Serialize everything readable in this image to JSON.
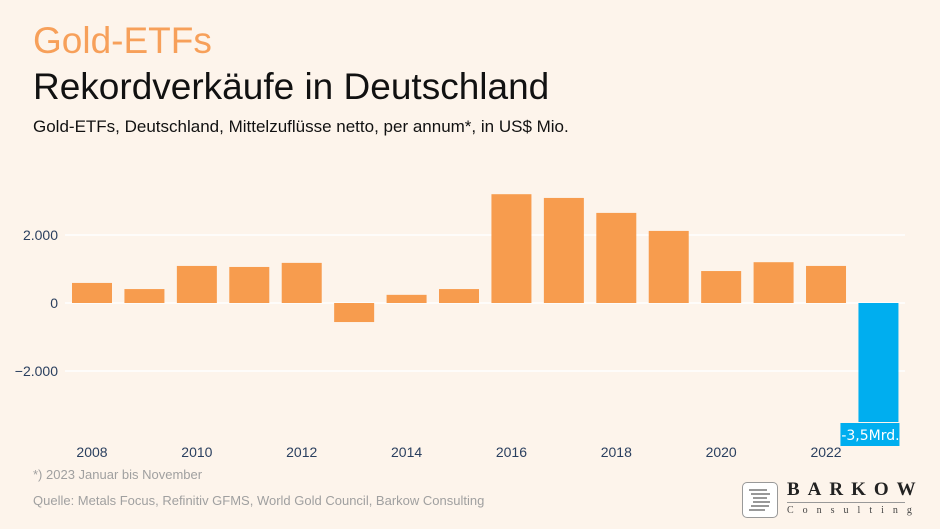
{
  "header": {
    "kicker": "Gold-ETFs",
    "title": "Rekordverkäufe in Deutschland",
    "subtitle": "Gold-ETFs, Deutschland, Mittelzuflüsse netto, per annum*, in US$ Mio."
  },
  "chart_data": {
    "type": "bar",
    "title": "",
    "xlabel": "",
    "ylabel": "",
    "categories": [
      2008,
      2009,
      2010,
      2011,
      2012,
      2013,
      2014,
      2015,
      2016,
      2017,
      2018,
      2019,
      2020,
      2021,
      2022,
      2023
    ],
    "values": [
      590,
      410,
      1090,
      1060,
      1180,
      -560,
      240,
      410,
      3200,
      3090,
      2650,
      2120,
      940,
      1200,
      1090,
      -3500
    ],
    "x_tick_labels": [
      "2008",
      "2010",
      "2012",
      "2014",
      "2016",
      "2018",
      "2020",
      "2022"
    ],
    "y_tick_values": [
      2000,
      0,
      -2000
    ],
    "y_tick_labels": [
      "2.000",
      "0",
      "−2.000"
    ],
    "ylim": [
      -4200,
      3600
    ],
    "grid": true,
    "colors": {
      "default": "#f79c4e",
      "highlight": "#00aeef"
    },
    "annotation": {
      "category": 2023,
      "text": "-3,5Mrd."
    }
  },
  "footer": {
    "note": "*) 2023 Januar bis November",
    "source": "Quelle: Metals Focus, Refinitiv GFMS, World Gold Council, Barkow Consulting"
  },
  "logo": {
    "name": "BARKOW",
    "sub": "Consulting"
  }
}
